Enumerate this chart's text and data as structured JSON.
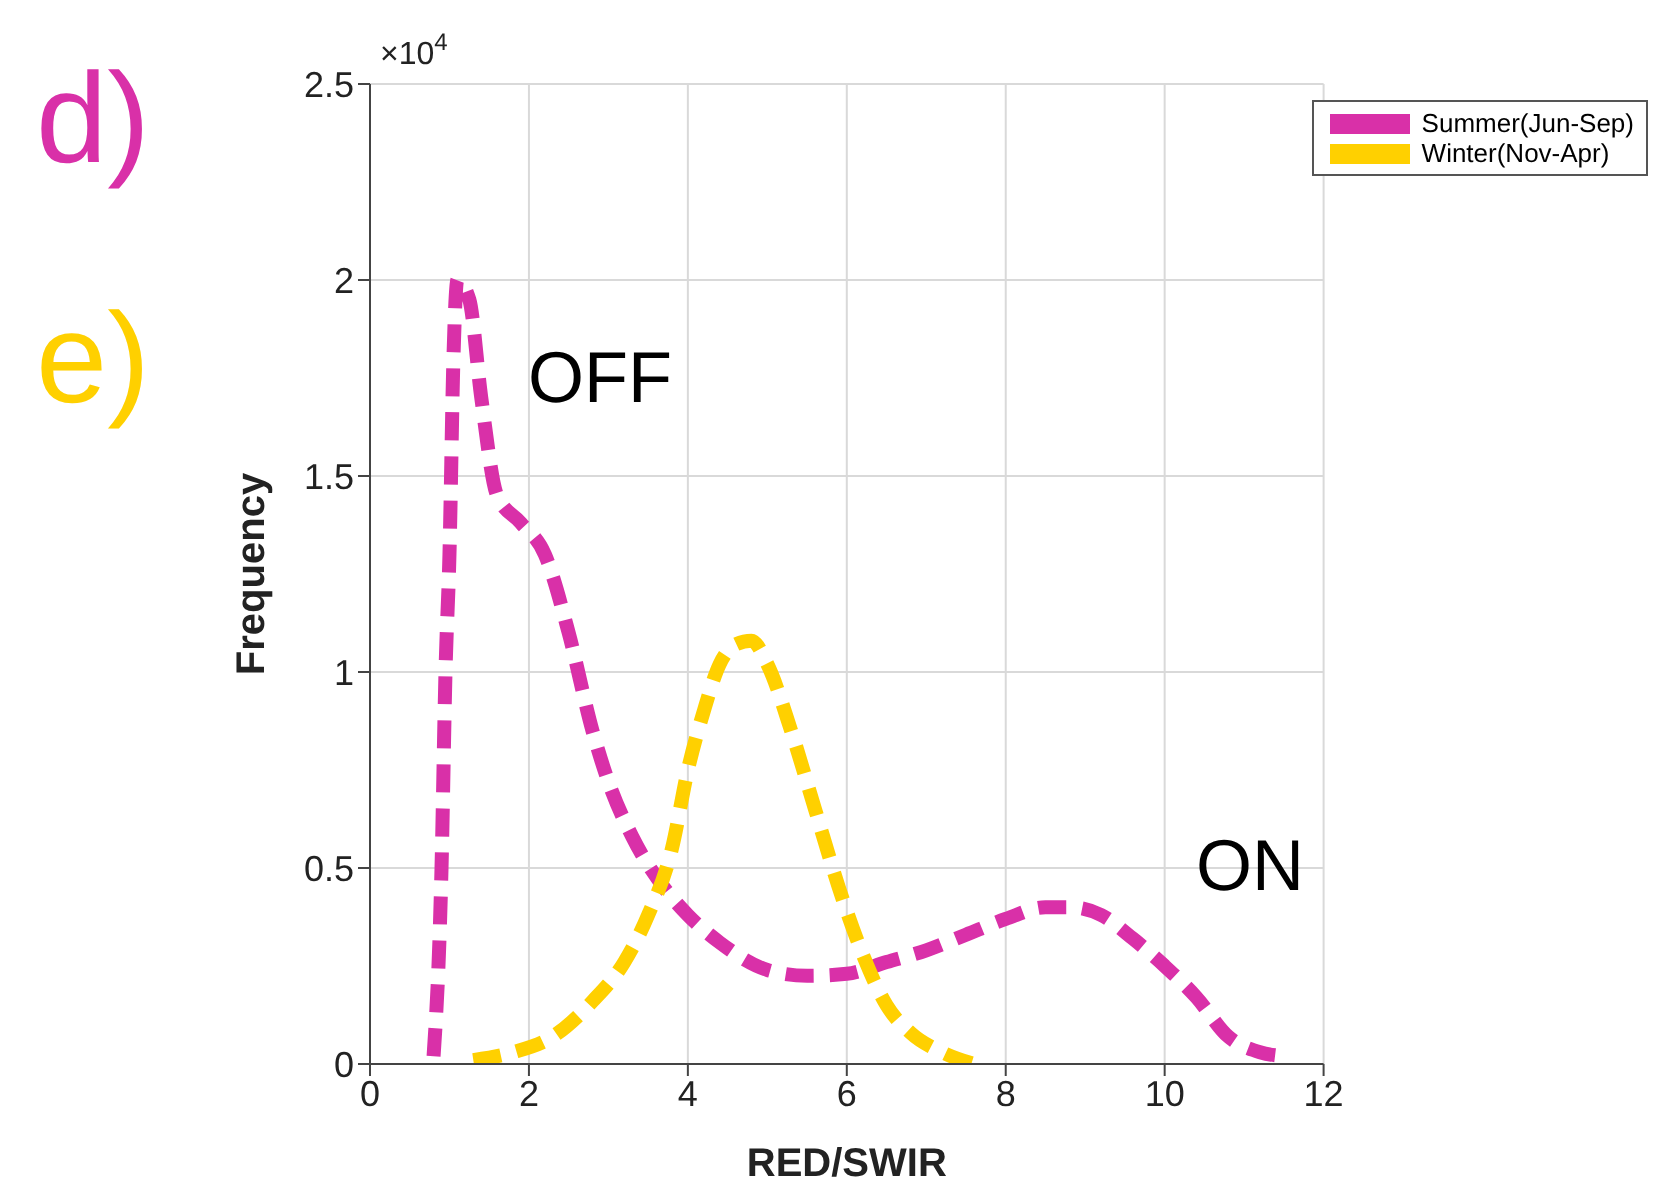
{
  "chart_data": {
    "type": "line",
    "xlabel": "RED/SWIR",
    "ylabel": "Frequency",
    "xlim": [
      0,
      12
    ],
    "xticks": [
      0,
      2,
      4,
      6,
      8,
      10,
      12
    ],
    "ylim": [
      0,
      2.5
    ],
    "yticks": [
      0,
      0.5,
      1,
      1.5,
      2,
      2.5
    ],
    "grid": true,
    "legend": "top right",
    "marker": "none",
    "line_style": "dashed",
    "annotations": [
      "d)",
      "e)",
      "×10$^{4}$",
      "OFF",
      "ON"
    ],
    "series": [
      {
        "name": "Summer(Jun-Sep)",
        "color": "#d930a8",
        "x": [
          0.8,
          0.9,
          0.95,
          1.0,
          1.05,
          1.1,
          1.25,
          1.4,
          1.6,
          1.9,
          2.2,
          2.5,
          2.8,
          3.0,
          3.3,
          3.7,
          4.0,
          4.4,
          5.0,
          5.5,
          6.0,
          6.5,
          7.0,
          7.5,
          8.0,
          8.5,
          8.8,
          9.2,
          9.6,
          10.0,
          10.4,
          10.8,
          11.2,
          11.5
        ],
        "values": [
          0.02,
          0.5,
          1.0,
          1.3,
          1.8,
          2.0,
          1.95,
          1.7,
          1.45,
          1.38,
          1.3,
          1.1,
          0.85,
          0.72,
          0.58,
          0.45,
          0.38,
          0.31,
          0.24,
          0.225,
          0.23,
          0.26,
          0.29,
          0.33,
          0.37,
          0.4,
          0.4,
          0.38,
          0.32,
          0.25,
          0.17,
          0.07,
          0.03,
          0.02
        ]
      },
      {
        "name": "Winter(Nov-Apr)",
        "color": "#ffd000",
        "x": [
          1.3,
          1.8,
          2.3,
          2.8,
          3.2,
          3.5,
          3.8,
          4.0,
          4.2,
          4.4,
          4.6,
          4.8,
          5.0,
          5.3,
          5.6,
          5.9,
          6.2,
          6.5,
          6.8,
          7.2,
          7.6
        ],
        "values": [
          0.01,
          0.03,
          0.07,
          0.16,
          0.26,
          0.38,
          0.55,
          0.75,
          0.9,
          1.02,
          1.07,
          1.08,
          1.02,
          0.85,
          0.65,
          0.45,
          0.28,
          0.15,
          0.08,
          0.03,
          0.0
        ]
      }
    ]
  }
}
